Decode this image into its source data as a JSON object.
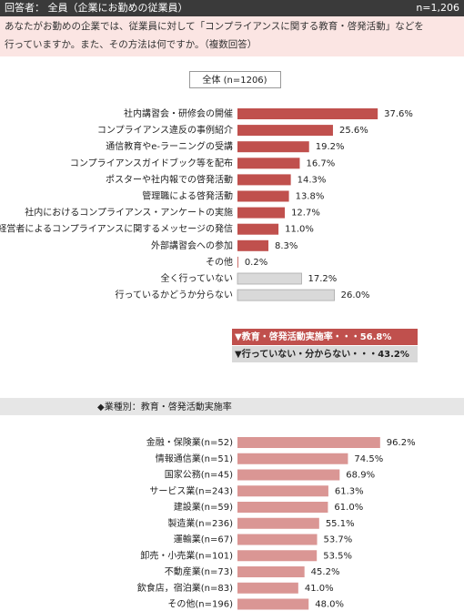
{
  "header": {
    "respondents": "回答者： 全員（企業にお勤めの従業員）",
    "n": "n=1,206"
  },
  "question": [
    "あなたがお勤めの企業では、従業員に対して「コンプライアンスに関する教育・啓発活動」などを",
    "行っていますか。また、その方法は何ですか。（複数回答）"
  ],
  "summary": [
    "▼教育・啓発活動実施率・・・56.8%",
    "▼行っていない・分からない・・・43.2%"
  ],
  "chart_data": [
    {
      "type": "bar",
      "orientation": "horizontal",
      "title": "全体 (n=1206)",
      "categories": [
        "社内講習会・研修会の開催",
        "コンプライアンス違反の事例紹介",
        "通信教育やe-ラーニングの受講",
        "コンプライアンスガイドブック等を配布",
        "ポスターや社内報での啓発活動",
        "管理職による啓発活動",
        "社内におけるコンプライアンス・アンケートの実施",
        "経営者によるコンプライアンスに関するメッセージの発信",
        "外部講習会への参加",
        "その他",
        "全く行っていない",
        "行っているかどうか分らない"
      ],
      "values": [
        37.6,
        25.6,
        19.2,
        16.7,
        14.3,
        13.8,
        12.7,
        11.0,
        8.3,
        0.2,
        17.2,
        26.0
      ],
      "value_labels": [
        "37.6%",
        "25.6%",
        "19.2%",
        "16.7%",
        "14.3%",
        "13.8%",
        "12.7%",
        "11.0%",
        "8.3%",
        "0.2%",
        "17.2%",
        "26.0%"
      ],
      "colors": [
        "#c0504d",
        "#c0504d",
        "#c0504d",
        "#c0504d",
        "#c0504d",
        "#c0504d",
        "#c0504d",
        "#c0504d",
        "#c0504d",
        "#c0504d",
        "#d9d9d9",
        "#d9d9d9"
      ]
    },
    {
      "type": "bar",
      "orientation": "horizontal",
      "title": "◆業種別：教育・啓発活動実施率",
      "categories": [
        "金融・保険業(n=52)",
        "情報通信業(n=51)",
        "国家公務(n=45)",
        "サービス業(n=243)",
        "建設業(n=59)",
        "製造業(n=236)",
        "運輸業(n=67)",
        "卸売・小売業(n=101)",
        "不動産業(n=73)",
        "飲食店，宿泊業(n=83)",
        "その他(n=196)"
      ],
      "values": [
        96.2,
        74.5,
        68.9,
        61.3,
        61.0,
        55.1,
        53.7,
        53.5,
        45.2,
        41.0,
        48.0
      ],
      "value_labels": [
        "96.2%",
        "74.5%",
        "68.9%",
        "61.3%",
        "61.0%",
        "55.1%",
        "53.7%",
        "53.5%",
        "45.2%",
        "41.0%",
        "48.0%"
      ],
      "color": "#da9694"
    }
  ]
}
